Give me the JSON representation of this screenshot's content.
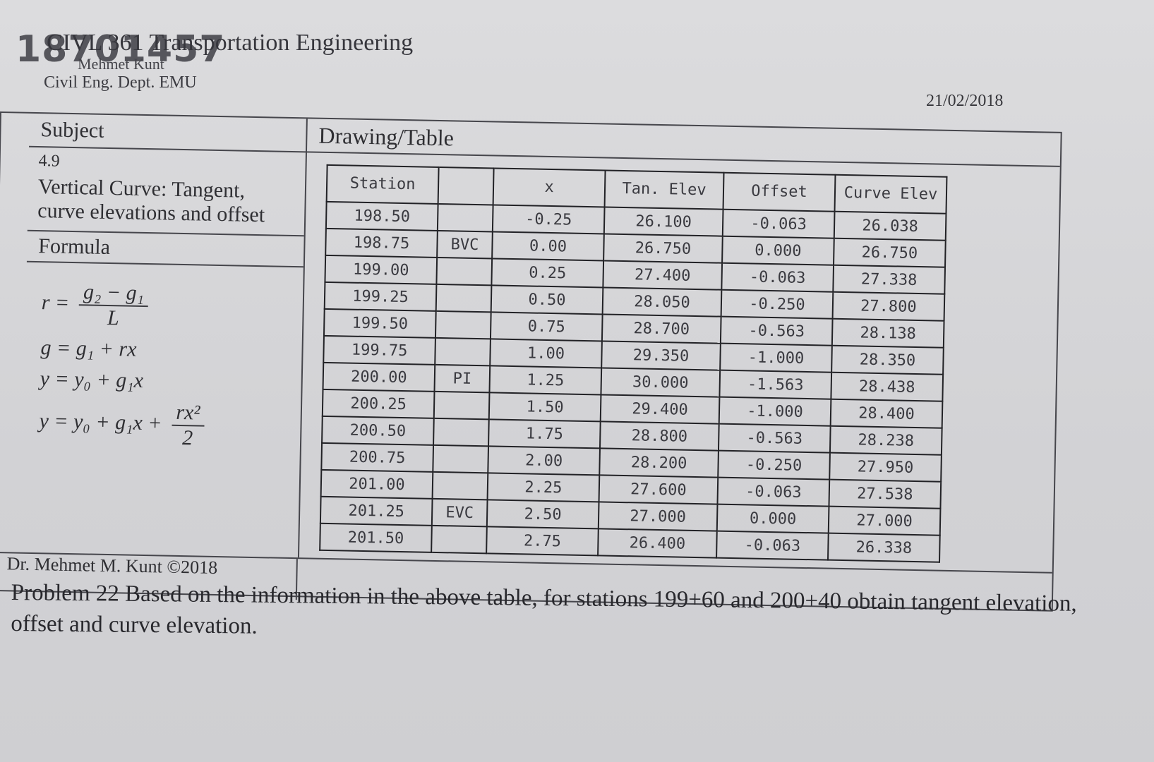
{
  "header": {
    "handwritten_number": "18701457",
    "course": "CIVL 361 Transportation Engineering",
    "instructor": "Mehmet Kunt",
    "department": "Civil Eng. Dept. EMU",
    "date": "21/02/2018"
  },
  "sheet": {
    "subject_label": "Subject",
    "section_number": "4.9",
    "subject_text": "Vertical Curve: Tangent, curve elevations and offset",
    "formula_label": "Formula",
    "formulas": {
      "f1_lhs": "r =",
      "f1_num": "g₂ − g₁",
      "f1_den": "L",
      "f2": "g = g₁ + rx",
      "f3": "y = y₀ + g₁x",
      "f4_lhs": "y = y₀ + g₁x +",
      "f4_num": "rx²",
      "f4_den": "2"
    },
    "drawing_label": "Drawing/Table",
    "footer": "Dr. Mehmet M. Kunt ©2018"
  },
  "table": {
    "headers": [
      "Station",
      "",
      "x",
      "Tan. Elev",
      "Offset",
      "Curve Elev"
    ],
    "rows": [
      [
        "198.50",
        "",
        "-0.25",
        "26.100",
        "-0.063",
        "26.038"
      ],
      [
        "198.75",
        "BVC",
        "0.00",
        "26.750",
        "0.000",
        "26.750"
      ],
      [
        "199.00",
        "",
        "0.25",
        "27.400",
        "-0.063",
        "27.338"
      ],
      [
        "199.25",
        "",
        "0.50",
        "28.050",
        "-0.250",
        "27.800"
      ],
      [
        "199.50",
        "",
        "0.75",
        "28.700",
        "-0.563",
        "28.138"
      ],
      [
        "199.75",
        "",
        "1.00",
        "29.350",
        "-1.000",
        "28.350"
      ],
      [
        "200.00",
        "PI",
        "1.25",
        "30.000",
        "-1.563",
        "28.438"
      ],
      [
        "200.25",
        "",
        "1.50",
        "29.400",
        "-1.000",
        "28.400"
      ],
      [
        "200.50",
        "",
        "1.75",
        "28.800",
        "-0.563",
        "28.238"
      ],
      [
        "200.75",
        "",
        "2.00",
        "28.200",
        "-0.250",
        "27.950"
      ],
      [
        "201.00",
        "",
        "2.25",
        "27.600",
        "-0.063",
        "27.538"
      ],
      [
        "201.25",
        "EVC",
        "2.50",
        "27.000",
        "0.000",
        "27.000"
      ],
      [
        "201.50",
        "",
        "2.75",
        "26.400",
        "-0.063",
        "26.338"
      ]
    ]
  },
  "problem": "Problem 22 Based on the information in the above table, for stations 199+60 and 200+40 obtain tangent elevation, offset and curve elevation."
}
